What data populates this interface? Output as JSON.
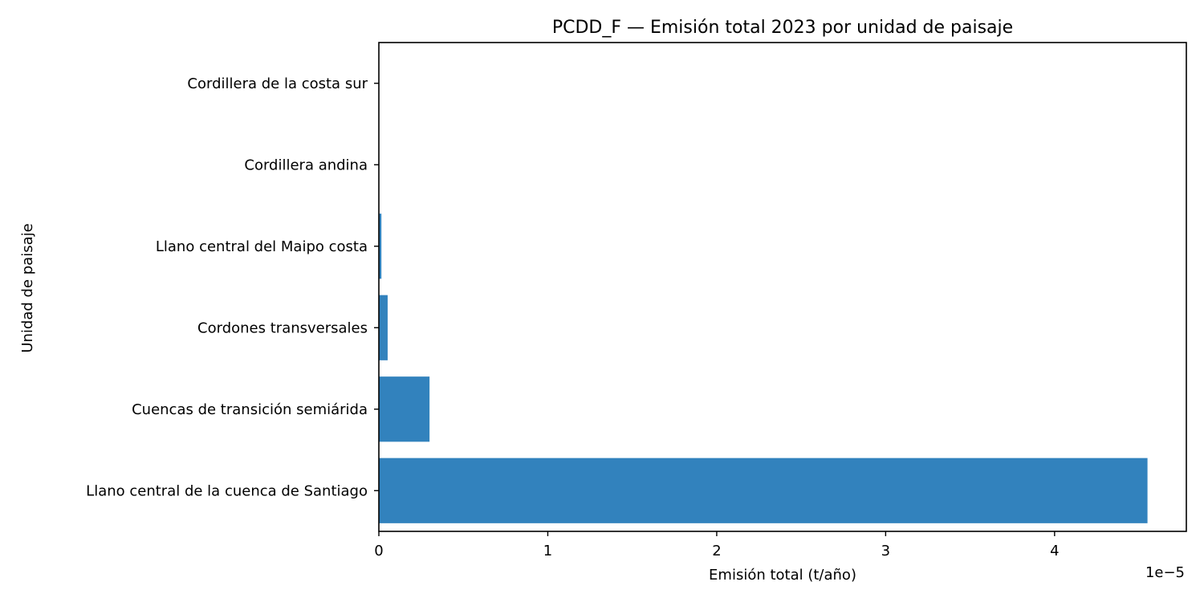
{
  "chart_data": {
    "type": "bar",
    "orientation": "horizontal",
    "title": "PCDD_F — Emisión total 2023 por unidad de paisaje",
    "xlabel": "Emisión total (t/año)",
    "ylabel": "Unidad de paisaje",
    "x_offset_label": "1e−5",
    "x_tick_labels": [
      "0",
      "1",
      "2",
      "3",
      "4"
    ],
    "x_tick_values": [
      0,
      1e-05,
      2e-05,
      3e-05,
      4e-05
    ],
    "xlim": [
      0,
      4.78e-05
    ],
    "categories": [
      "Cordillera de la costa sur",
      "Cordillera andina",
      "Llano central del Maipo costa",
      "Cordones transversales",
      "Cuencas de transición semiárida",
      "Llano central de la cuenca de Santiago"
    ],
    "values": [
      0.0,
      0.0,
      1.5e-07,
      5.2e-07,
      3e-06,
      4.55e-05
    ],
    "bar_color": "#3282bd",
    "grid": false,
    "legend": "none"
  }
}
